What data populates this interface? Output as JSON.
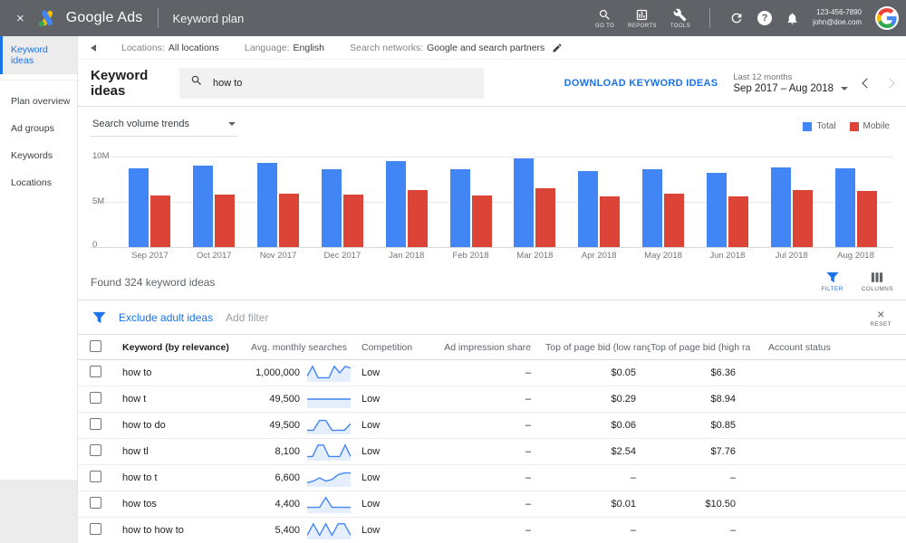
{
  "topbar": {
    "close_icon": "×",
    "brand": "Google Ads",
    "page_title": "Keyword plan",
    "nav": [
      {
        "label": "GO TO",
        "icon": "search-icon"
      },
      {
        "label": "REPORTS",
        "icon": "reports-chart-icon"
      },
      {
        "label": "TOOLS",
        "icon": "wrench-icon"
      }
    ],
    "help_glyph": "?",
    "account": {
      "phone": "123-456-7890",
      "email": "john@doe.com"
    }
  },
  "context_bar": {
    "items": [
      {
        "label": "Locations:",
        "value": "All locations"
      },
      {
        "label": "Language:",
        "value": "English"
      },
      {
        "label": "Search networks:",
        "value": "Google and search partners"
      }
    ]
  },
  "sidebar": {
    "items": [
      {
        "label": "Keyword ideas",
        "selected": true
      },
      {
        "label": "Plan overview",
        "selected": false
      },
      {
        "label": "Ad groups",
        "selected": false
      },
      {
        "label": "Keywords",
        "selected": false
      },
      {
        "label": "Locations",
        "selected": false
      }
    ]
  },
  "header": {
    "title": "Keyword ideas",
    "search_value": "how to",
    "download_label": "DOWNLOAD KEYWORD IDEAS",
    "range_caption": "Last 12 months",
    "range_value": "Sep 2017 – Aug 2018"
  },
  "chart_data": {
    "type": "bar",
    "title": "Search volume trends",
    "categories": [
      "Sep 2017",
      "Oct 2017",
      "Nov 2017",
      "Dec 2017",
      "Jan 2018",
      "Feb 2018",
      "Mar 2018",
      "Apr 2018",
      "May 2018",
      "Jun 2018",
      "Jul 2018",
      "Aug 2018"
    ],
    "series": [
      {
        "name": "Total",
        "color": "#4285f4",
        "values": [
          8.7,
          9.0,
          9.3,
          8.6,
          9.5,
          8.6,
          9.8,
          8.4,
          8.6,
          8.2,
          8.8,
          8.7
        ]
      },
      {
        "name": "Mobile",
        "color": "#db4437",
        "values": [
          5.7,
          5.8,
          5.9,
          5.8,
          6.3,
          5.7,
          6.5,
          5.6,
          5.9,
          5.6,
          6.3,
          6.2
        ]
      }
    ],
    "unit": "millions of searches",
    "yticks": [
      "10M",
      "5M",
      "0"
    ],
    "ylim": [
      0,
      10
    ],
    "grid": true,
    "legend_position": "top-right"
  },
  "results": {
    "found_text": "Found 324 keyword ideas",
    "filter_label": "FILTER",
    "columns_label": "COLUMNS",
    "chip": "Exclude adult ideas",
    "add_filter": "Add filter",
    "reset_label": "RESET",
    "reset_icon": "×"
  },
  "table": {
    "columns": [
      "Keyword (by relevance)",
      "Avg. monthly searches",
      "Competition",
      "Ad impression share",
      "Top of page bid (low range)",
      "Top of page bid (high range)",
      "Account status"
    ],
    "rows": [
      {
        "keyword": "how to",
        "avg_monthly_searches": "1,000,000",
        "spark": [
          3,
          9,
          2,
          2,
          2,
          9,
          5,
          9,
          8
        ],
        "competition": "Low",
        "ad_impression_share": "–",
        "top_of_page_bid_low": "$0.05",
        "top_of_page_bid_high": "$6.36",
        "account_status": ""
      },
      {
        "keyword": "how t",
        "avg_monthly_searches": "49,500",
        "spark": [
          5,
          5,
          5,
          5,
          5,
          5,
          5,
          5
        ],
        "competition": "Low",
        "ad_impression_share": "–",
        "top_of_page_bid_low": "$0.29",
        "top_of_page_bid_high": "$8.94",
        "account_status": ""
      },
      {
        "keyword": "how to do",
        "avg_monthly_searches": "49,500",
        "spark": [
          2,
          2,
          8,
          8,
          2,
          2,
          2,
          6
        ],
        "competition": "Low",
        "ad_impression_share": "–",
        "top_of_page_bid_low": "$0.06",
        "top_of_page_bid_high": "$0.85",
        "account_status": ""
      },
      {
        "keyword": "how tl",
        "avg_monthly_searches": "8,100",
        "spark": [
          2,
          2,
          9,
          9,
          2,
          2,
          2,
          9,
          2
        ],
        "competition": "Low",
        "ad_impression_share": "–",
        "top_of_page_bid_low": "$2.54",
        "top_of_page_bid_high": "$7.76",
        "account_status": ""
      },
      {
        "keyword": "how to t",
        "avg_monthly_searches": "6,600",
        "spark": [
          2,
          3,
          5,
          3,
          4,
          7,
          8,
          8
        ],
        "competition": "Low",
        "ad_impression_share": "–",
        "top_of_page_bid_low": "–",
        "top_of_page_bid_high": "–",
        "account_status": ""
      },
      {
        "keyword": "how tos",
        "avg_monthly_searches": "4,400",
        "spark": [
          3,
          3,
          3,
          9,
          3,
          3,
          3,
          3
        ],
        "competition": "Low",
        "ad_impression_share": "–",
        "top_of_page_bid_low": "$0.01",
        "top_of_page_bid_high": "$10.50",
        "account_status": ""
      },
      {
        "keyword": "how to how to",
        "avg_monthly_searches": "5,400",
        "spark": [
          2,
          9,
          2,
          9,
          2,
          9,
          9,
          2
        ],
        "competition": "Low",
        "ad_impression_share": "–",
        "top_of_page_bid_low": "–",
        "top_of_page_bid_high": "–",
        "account_status": ""
      }
    ]
  }
}
